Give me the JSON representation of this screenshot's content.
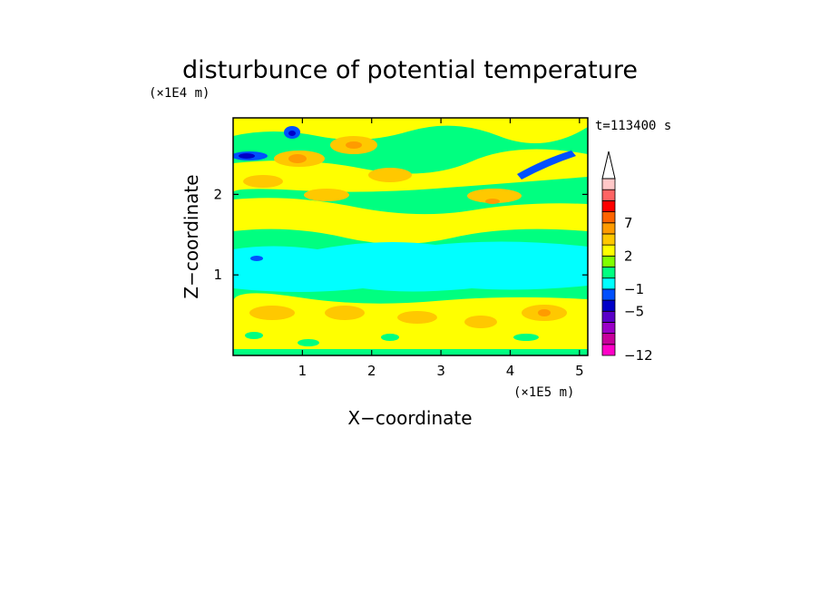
{
  "chart_data": {
    "type": "heatmap",
    "title": "disturbunce of potential temperature",
    "xlabel": "X−coordinate",
    "ylabel": "Z−coordinate",
    "x_scale_label": "(×1E5 m)",
    "y_scale_label": "(×1E4 m)",
    "time_label": "t=113400 s",
    "xlim": [
      0,
      5.12
    ],
    "ylim": [
      0,
      2.95
    ],
    "x_ticks": [
      "1",
      "2",
      "3",
      "4",
      "5"
    ],
    "y_ticks": [
      "1",
      "2"
    ],
    "x_tick_values": [
      1,
      2,
      3,
      4,
      5
    ],
    "y_tick_values": [
      1,
      2
    ],
    "colorbar": {
      "levels_shown": [
        "7",
        "2",
        "−1",
        "−5",
        "−12"
      ],
      "colors_bottom_to_top": [
        "#ff00c8",
        "#c8009b",
        "#9b00c8",
        "#5a00c8",
        "#0000c8",
        "#0050ff",
        "#00ffff",
        "#00ff80",
        "#80ff00",
        "#ffff00",
        "#ffc800",
        "#ff9b00",
        "#ff6400",
        "#ff0000",
        "#ff6464",
        "#ffc8c8"
      ],
      "extend": "max"
    },
    "features": {
      "cyan_band_z": [
        0.8,
        1.35
      ],
      "blue_streaks": [
        {
          "x": [
            0.0,
            0.5
          ],
          "z": [
            2.45,
            2.55
          ]
        },
        {
          "x": [
            4.1,
            4.9
          ],
          "z": [
            2.4,
            2.6
          ]
        },
        {
          "x": [
            0.8,
            0.95
          ],
          "z": [
            2.75,
            2.85
          ]
        }
      ]
    }
  }
}
